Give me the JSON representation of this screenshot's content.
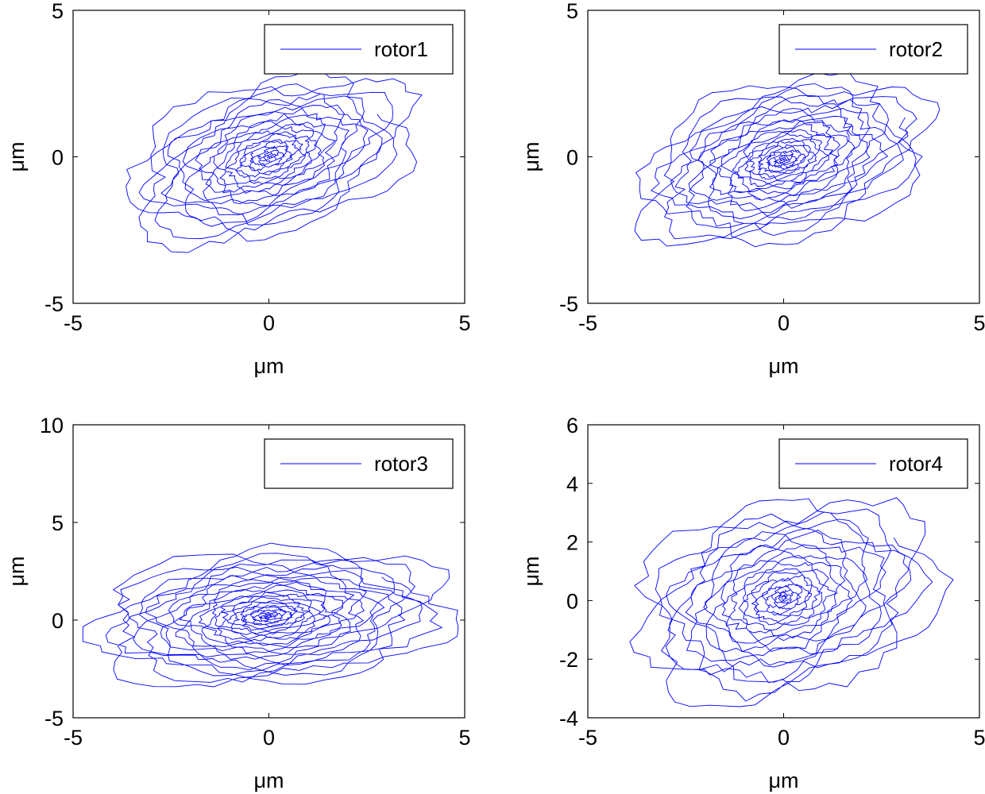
{
  "colors": {
    "trace": "#0000ff",
    "axes": "#000000",
    "background": "#ffffff"
  },
  "chart_data": [
    {
      "type": "line",
      "title": "",
      "xlabel": "μm",
      "ylabel": "μm",
      "xlim": [
        -5,
        5
      ],
      "ylim": [
        -5,
        5
      ],
      "xticks": [
        -5,
        0,
        5
      ],
      "yticks": [
        -5,
        0,
        5
      ],
      "xtick_labels": [
        "-5",
        "0",
        "5"
      ],
      "ytick_labels": [
        "-5",
        "0",
        "5"
      ],
      "legend": {
        "entries": [
          "rotor1"
        ],
        "position": "top-right"
      },
      "grid": false,
      "orbit": {
        "center": [
          0.0,
          0.0
        ],
        "max_radius": 3.9,
        "tilt_deg": 30,
        "aspect": 0.62,
        "turns": 22,
        "points_per_turn": 60,
        "seed": 11
      },
      "series": [
        {
          "name": "rotor1",
          "x": [],
          "y": []
        }
      ]
    },
    {
      "type": "line",
      "title": "",
      "xlabel": "μm",
      "ylabel": "μm",
      "xlim": [
        -5,
        5
      ],
      "ylim": [
        -5,
        5
      ],
      "xticks": [
        -5,
        0,
        5
      ],
      "yticks": [
        -5,
        0,
        5
      ],
      "xtick_labels": [
        "-5",
        "0",
        "5"
      ],
      "ytick_labels": [
        "-5",
        "0",
        "5"
      ],
      "legend": {
        "entries": [
          "rotor2"
        ],
        "position": "top-right"
      },
      "grid": false,
      "orbit": {
        "center": [
          0.0,
          -0.1
        ],
        "max_radius": 3.9,
        "tilt_deg": 28,
        "aspect": 0.64,
        "turns": 24,
        "points_per_turn": 60,
        "seed": 23
      },
      "series": [
        {
          "name": "rotor2",
          "x": [],
          "y": []
        }
      ]
    },
    {
      "type": "line",
      "title": "",
      "xlabel": "μm",
      "ylabel": "μm",
      "xlim": [
        -5,
        5
      ],
      "ylim": [
        -5,
        10
      ],
      "xticks": [
        -5,
        0,
        5
      ],
      "yticks": [
        -5,
        0,
        5,
        10
      ],
      "xtick_labels": [
        "-5",
        "0",
        "5"
      ],
      "ytick_labels": [
        "-5",
        "0",
        "5",
        "10"
      ],
      "legend": {
        "entries": [
          "rotor3"
        ],
        "position": "top-right"
      },
      "grid": false,
      "orbit": {
        "center": [
          0.0,
          0.2
        ],
        "max_radius": 4.5,
        "tilt_deg": 18,
        "aspect": 0.75,
        "turns": 26,
        "points_per_turn": 60,
        "seed": 37
      },
      "series": [
        {
          "name": "rotor3",
          "x": [],
          "y": []
        }
      ]
    },
    {
      "type": "line",
      "title": "",
      "xlabel": "μm",
      "ylabel": "μm",
      "xlim": [
        -5,
        5
      ],
      "ylim": [
        -4,
        6
      ],
      "xticks": [
        -5,
        0,
        5
      ],
      "yticks": [
        -4,
        -2,
        0,
        2,
        4,
        6
      ],
      "xtick_labels": [
        "-5",
        "0",
        "5"
      ],
      "ytick_labels": [
        "-4",
        "-2",
        "0",
        "2",
        "4",
        "6"
      ],
      "legend": {
        "entries": [
          "rotor4"
        ],
        "position": "top-right"
      },
      "grid": false,
      "orbit": {
        "center": [
          0.0,
          0.1
        ],
        "max_radius": 4.0,
        "tilt_deg": 35,
        "aspect": 0.78,
        "turns": 22,
        "points_per_turn": 60,
        "seed": 51
      },
      "series": [
        {
          "name": "rotor4",
          "x": [],
          "y": []
        }
      ]
    }
  ]
}
